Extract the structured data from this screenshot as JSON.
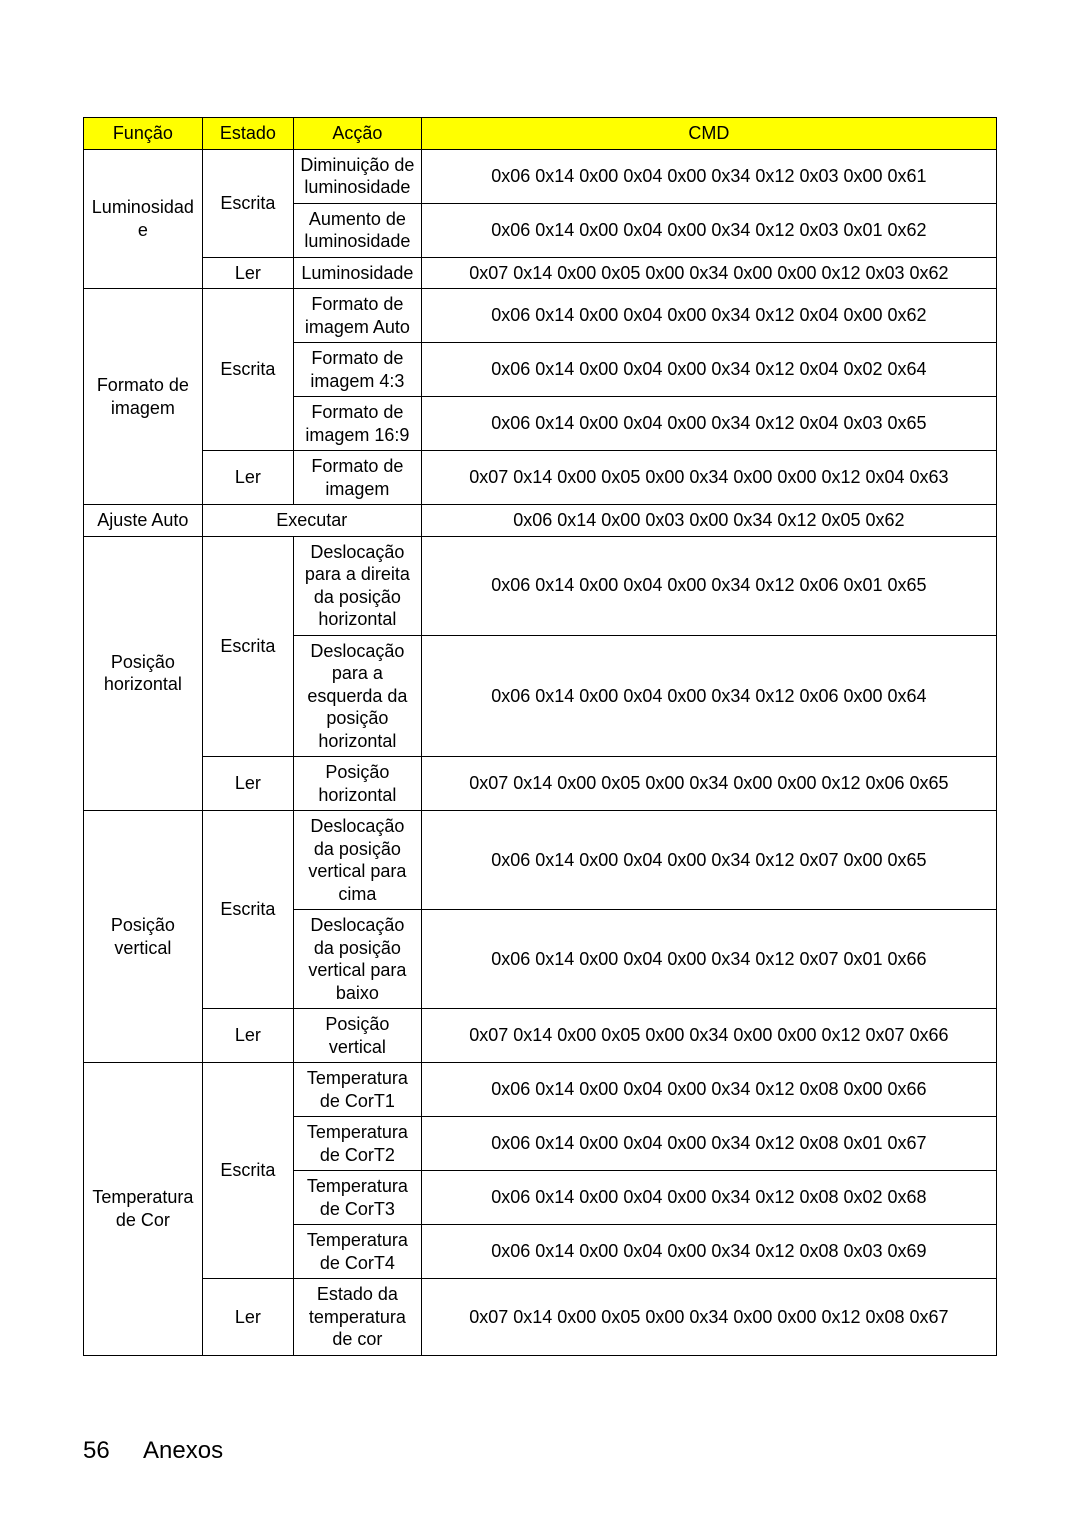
{
  "header": {
    "funcao": "Função",
    "estado": "Estado",
    "accao": "Acção",
    "cmd": "CMD"
  },
  "col_widths_pct": [
    13,
    10,
    14,
    63
  ],
  "groups": [
    {
      "funcao": "Luminosidade",
      "estados": [
        {
          "estado": "Escrita",
          "rows": [
            {
              "accao": "Diminuição de luminosidade",
              "cmd": "0x06 0x14 0x00 0x04 0x00 0x34 0x12 0x03 0x00 0x61"
            },
            {
              "accao": "Aumento de luminosidade",
              "cmd": "0x06 0x14 0x00 0x04 0x00 0x34 0x12 0x03 0x01 0x62"
            }
          ]
        },
        {
          "estado": "Ler",
          "rows": [
            {
              "accao": "Luminosidade",
              "cmd": "0x07 0x14 0x00 0x05 0x00 0x34 0x00 0x00 0x12 0x03 0x62"
            }
          ]
        }
      ]
    },
    {
      "funcao": "Formato de imagem",
      "estados": [
        {
          "estado": "Escrita",
          "rows": [
            {
              "accao": "Formato de imagem Auto",
              "cmd": "0x06 0x14 0x00 0x04 0x00 0x34 0x12 0x04 0x00 0x62"
            },
            {
              "accao": "Formato de imagem 4:3",
              "cmd": "0x06 0x14 0x00 0x04 0x00 0x34 0x12 0x04 0x02 0x64"
            },
            {
              "accao": "Formato de imagem 16:9",
              "cmd": "0x06 0x14 0x00 0x04 0x00 0x34 0x12 0x04 0x03 0x65"
            }
          ]
        },
        {
          "estado": "Ler",
          "rows": [
            {
              "accao": "Formato de imagem",
              "cmd": "0x07 0x14 0x00 0x05 0x00 0x34 0x00 0x00 0x12 0x04 0x63"
            }
          ]
        }
      ]
    },
    {
      "funcao": "Ajuste Auto",
      "special": true,
      "estado_accao": "Executar",
      "cmd": "0x06 0x14 0x00 0x03 0x00 0x34 0x12 0x05 0x62"
    },
    {
      "funcao": "Posição horizontal",
      "estados": [
        {
          "estado": "Escrita",
          "rows": [
            {
              "accao": "Deslocação para a direita da posição horizontal",
              "cmd": "0x06 0x14 0x00 0x04 0x00 0x34 0x12 0x06 0x01 0x65"
            },
            {
              "accao": "Deslocação para a esquerda da posição horizontal",
              "cmd": "0x06 0x14 0x00 0x04 0x00 0x34 0x12 0x06 0x00 0x64"
            }
          ]
        },
        {
          "estado": "Ler",
          "rows": [
            {
              "accao": "Posição horizontal",
              "cmd": "0x07 0x14 0x00 0x05 0x00 0x34 0x00 0x00 0x12 0x06 0x65"
            }
          ]
        }
      ]
    },
    {
      "funcao": "Posição vertical",
      "estados": [
        {
          "estado": "Escrita",
          "rows": [
            {
              "accao": "Deslocação da posição vertical para cima",
              "cmd": "0x06 0x14 0x00 0x04 0x00 0x34 0x12 0x07 0x00 0x65"
            },
            {
              "accao": "Deslocação da posição vertical para baixo",
              "cmd": "0x06 0x14 0x00 0x04 0x00 0x34 0x12 0x07 0x01 0x66"
            }
          ]
        },
        {
          "estado": "Ler",
          "rows": [
            {
              "accao": "Posição vertical",
              "cmd": "0x07 0x14 0x00 0x05 0x00 0x34 0x00 0x00 0x12 0x07 0x66"
            }
          ]
        }
      ]
    },
    {
      "funcao": "Temperatura de Cor",
      "estados": [
        {
          "estado": "Escrita",
          "rows": [
            {
              "accao": "Temperatura de CorT1",
              "cmd": "0x06 0x14 0x00 0x04 0x00 0x34 0x12 0x08 0x00 0x66"
            },
            {
              "accao": "Temperatura de CorT2",
              "cmd": "0x06 0x14 0x00 0x04 0x00 0x34 0x12 0x08 0x01 0x67"
            },
            {
              "accao": "Temperatura de CorT3",
              "cmd": "0x06 0x14 0x00 0x04 0x00 0x34 0x12 0x08 0x02 0x68"
            },
            {
              "accao": "Temperatura de CorT4",
              "cmd": "0x06 0x14 0x00 0x04 0x00 0x34 0x12 0x08 0x03 0x69"
            }
          ]
        },
        {
          "estado": "Ler",
          "rows": [
            {
              "accao": "Estado da temperatura de cor",
              "cmd": "0x07 0x14 0x00 0x05 0x00 0x34 0x00 0x00 0x12 0x08 0x67"
            }
          ]
        }
      ]
    }
  ],
  "footer": {
    "page_number": "56",
    "section": "Anexos"
  }
}
